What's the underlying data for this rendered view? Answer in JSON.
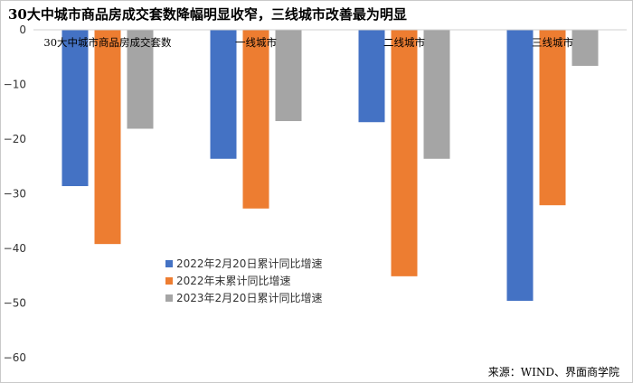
{
  "title": "30大中城市商品房成交套数降幅明显收窄，三线城市改善最为明显",
  "source": "来源：WIND、界面商学院",
  "chart_data": {
    "type": "bar",
    "categories": [
      "30大中城市商品房成交套数",
      "一线城市",
      "二线城市",
      "三线城市"
    ],
    "series": [
      {
        "name": "2022年2月20日累计同比增速",
        "color": "#4472C4",
        "values": [
          -28.6,
          -23.6,
          -16.9,
          -49.6
        ]
      },
      {
        "name": "2022年末累计同比增速",
        "color": "#ED7D31",
        "values": [
          -39.2,
          -32.7,
          -45.1,
          -32.1
        ]
      },
      {
        "name": "2023年2月20日累计同比增速",
        "color": "#A5A5A5",
        "values": [
          -18.1,
          -16.7,
          -23.6,
          -6.6
        ]
      }
    ],
    "ylim": [
      -60,
      0
    ],
    "yticks": [
      0,
      -10,
      -20,
      -30,
      -40,
      -50,
      -60
    ],
    "grid": false,
    "legend_position": "inside-lower-left",
    "xlabel": "",
    "ylabel": ""
  }
}
